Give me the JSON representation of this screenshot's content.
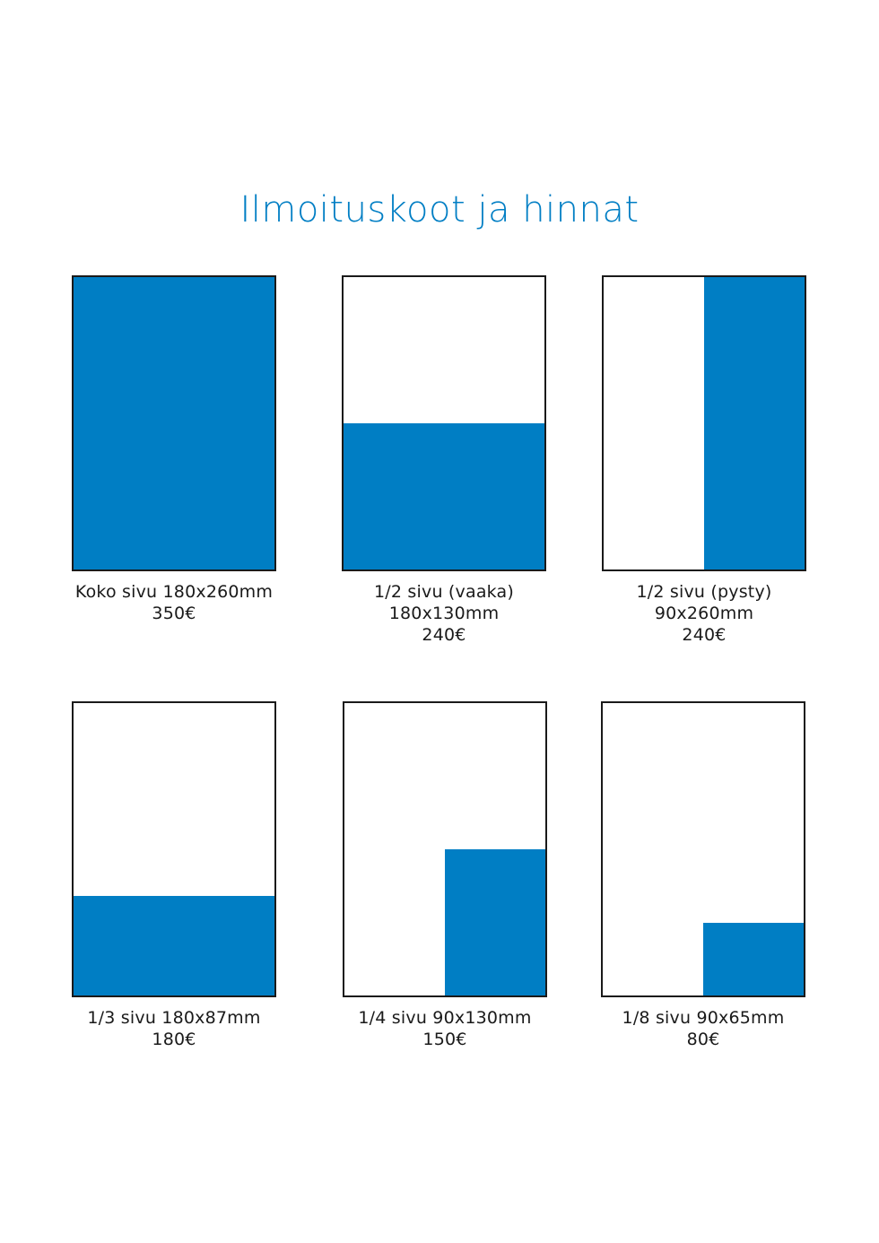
{
  "title": "Ilmoituskoot ja hinnat",
  "colors": {
    "accent": "#007ec4",
    "border": "#1a1a1a",
    "text": "#1a1a1a"
  },
  "ads": [
    {
      "id": "koko",
      "lines": [
        "Koko sivu 180x260mm",
        "350€"
      ],
      "fill_fraction_of_page": 1.0,
      "fill_shape": "full"
    },
    {
      "id": "puoli-vaaka",
      "lines": [
        "1/2 sivu (vaaka)",
        "180x130mm",
        "240€"
      ],
      "fill_fraction_of_page": 0.5,
      "fill_shape": "bottom-half"
    },
    {
      "id": "puoli-pysty",
      "lines": [
        "1/2 sivu (pysty)",
        "90x260mm",
        "240€"
      ],
      "fill_fraction_of_page": 0.5,
      "fill_shape": "right-half"
    },
    {
      "id": "kolmannes",
      "lines": [
        "1/3 sivu 180x87mm",
        "180€"
      ],
      "fill_fraction_of_page": 0.333,
      "fill_shape": "bottom-third"
    },
    {
      "id": "neljannes",
      "lines": [
        "1/4 sivu 90x130mm",
        "150€"
      ],
      "fill_fraction_of_page": 0.25,
      "fill_shape": "bottom-right-quarter"
    },
    {
      "id": "kahdeksasosa",
      "lines": [
        "1/8 sivu 90x65mm",
        "80€"
      ],
      "fill_fraction_of_page": 0.125,
      "fill_shape": "bottom-right-eighth"
    }
  ]
}
